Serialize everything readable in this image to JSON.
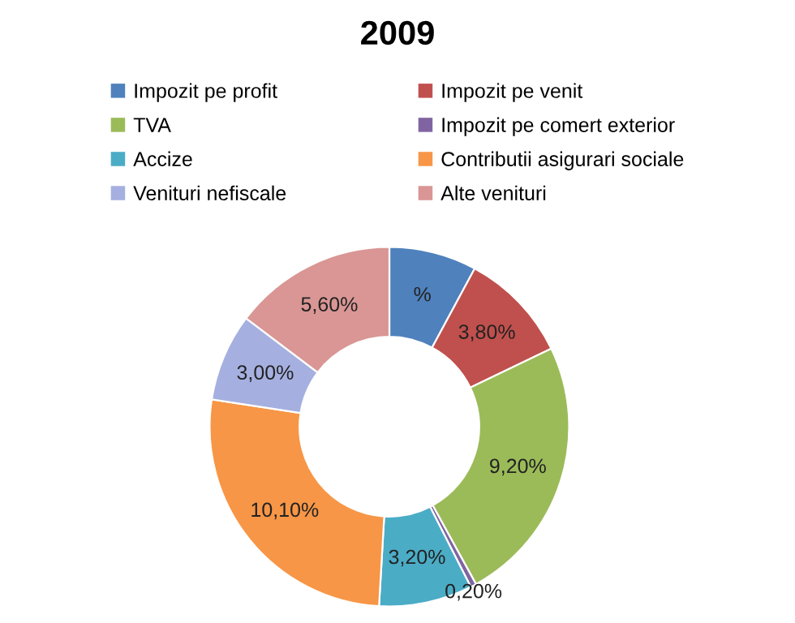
{
  "chart_data": {
    "type": "donut",
    "title": "2009",
    "categories": [
      "Impozit pe profit",
      "Impozit pe venit",
      "TVA",
      "Impozit pe comert exterior",
      "Accize",
      "Contributii asigurari sociale",
      "Venituri nefiscale",
      "Alte venituri"
    ],
    "values": [
      3.0,
      3.8,
      9.2,
      0.2,
      3.2,
      10.1,
      3.0,
      5.6
    ],
    "value_labels": [
      "%",
      "3,80%",
      "9,20%",
      "0,20%",
      "3,20%",
      "10,10%",
      "3,00%",
      "5,60%"
    ],
    "colors": [
      "#4f81bd",
      "#c0504d",
      "#9bbb59",
      "#8064a2",
      "#4bacc6",
      "#f79646",
      "#a5b0e0",
      "#d99694"
    ],
    "legend": "top"
  }
}
